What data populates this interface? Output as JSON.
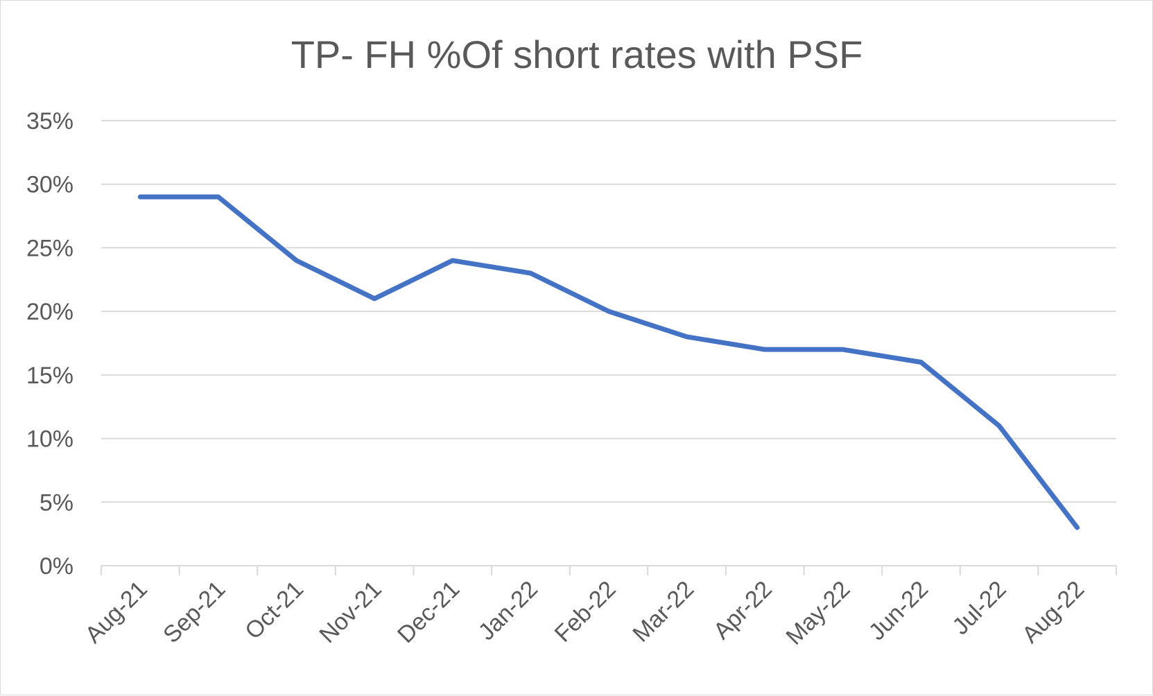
{
  "chart_data": {
    "type": "line",
    "title": "TP- FH %Of short rates with PSF",
    "xlabel": "",
    "ylabel": "",
    "categories": [
      "Aug-21",
      "Sep-21",
      "Oct-21",
      "Nov-21",
      "Dec-21",
      "Jan-22",
      "Feb-22",
      "Mar-22",
      "Apr-22",
      "May-22",
      "Jun-22",
      "Jul-22",
      "Aug-22"
    ],
    "series": [
      {
        "values": [
          0.29,
          0.29,
          0.24,
          0.21,
          0.24,
          0.23,
          0.2,
          0.18,
          0.17,
          0.17,
          0.16,
          0.11,
          0.03
        ]
      }
    ],
    "ylim": [
      0,
      0.35
    ],
    "y_ticks": [
      0,
      0.05,
      0.1,
      0.15,
      0.2,
      0.25,
      0.3,
      0.35
    ],
    "y_tick_labels": [
      "0%",
      "5%",
      "10%",
      "15%",
      "20%",
      "25%",
      "30%",
      "35%"
    ],
    "grid": true,
    "legend": "none",
    "colors": {
      "line": "#4472C4",
      "grid": "#d9d9d9",
      "text": "#595959"
    }
  }
}
